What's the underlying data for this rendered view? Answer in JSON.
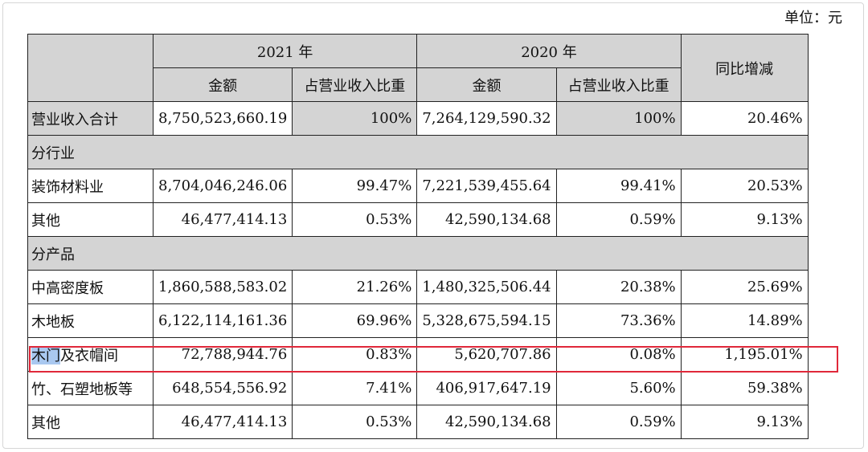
{
  "unit_label": "单位：元",
  "header": {
    "year_2021": "2021 年",
    "year_2020": "2020 年",
    "yoy": "同比增减",
    "amount": "金额",
    "ratio": "占营业收入比重"
  },
  "rows": {
    "total": {
      "label": "营业收入合计",
      "a2021": "8,750,523,660.19",
      "r2021": "100%",
      "a2020": "7,264,129,590.32",
      "r2020": "100%",
      "yoy": "20.46%"
    },
    "section_industry": "分行业",
    "decor": {
      "label": "装饰材料业",
      "a2021": "8,704,046,246.06",
      "r2021": "99.47%",
      "a2020": "7,221,539,455.64",
      "r2020": "99.41%",
      "yoy": "20.53%"
    },
    "other1": {
      "label": "其他",
      "a2021": "46,477,414.13",
      "r2021": "0.53%",
      "a2020": "42,590,134.68",
      "r2020": "0.59%",
      "yoy": "9.13%"
    },
    "section_product": "分产品",
    "mdf": {
      "label": "中高密度板",
      "a2021": "1,860,588,583.02",
      "r2021": "21.26%",
      "a2020": "1,480,325,506.44",
      "r2020": "20.38%",
      "yoy": "25.69%"
    },
    "floor": {
      "label": "木地板",
      "a2021": "6,122,114,161.36",
      "r2021": "69.96%",
      "a2020": "5,328,675,594.15",
      "r2020": "73.36%",
      "yoy": "14.89%"
    },
    "door": {
      "label_sel": "木门",
      "label_rest": "及衣帽间",
      "a2021": "72,788,944.76",
      "r2021": "0.83%",
      "a2020": "5,620,707.86",
      "r2020": "0.08%",
      "yoy": "1,195.01%"
    },
    "bamboo": {
      "label": "竹、石塑地板等",
      "a2021": "648,554,556.92",
      "r2021": "7.41%",
      "a2020": "406,917,647.19",
      "r2020": "5.60%",
      "yoy": "59.38%"
    },
    "other2": {
      "label": "其他",
      "a2021": "46,477,414.13",
      "r2021": "0.53%",
      "a2020": "42,590,134.68",
      "r2020": "0.59%",
      "yoy": "9.13%"
    }
  },
  "colors": {
    "header_grey": "#d4d4d4",
    "highlight_red": "#e0283a",
    "selection_blue": "#a9c8f0"
  }
}
